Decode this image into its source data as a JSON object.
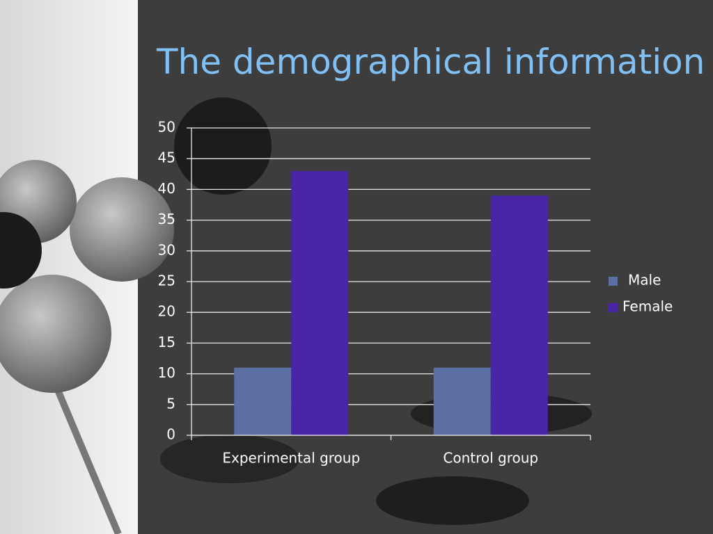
{
  "chart_data": {
    "type": "bar",
    "title": "The demographical information",
    "categories": [
      "Experimental group",
      "Control group"
    ],
    "series": [
      {
        "name": "Male",
        "color": "#5b6fa3",
        "values": [
          11,
          11
        ]
      },
      {
        "name": "Female",
        "color": "#4925a8",
        "values": [
          43,
          39
        ]
      }
    ],
    "ylim": [
      0,
      50
    ],
    "yticks": [
      0,
      5,
      10,
      15,
      20,
      25,
      30,
      35,
      40,
      45,
      50
    ],
    "grid": true,
    "legend": "right"
  }
}
